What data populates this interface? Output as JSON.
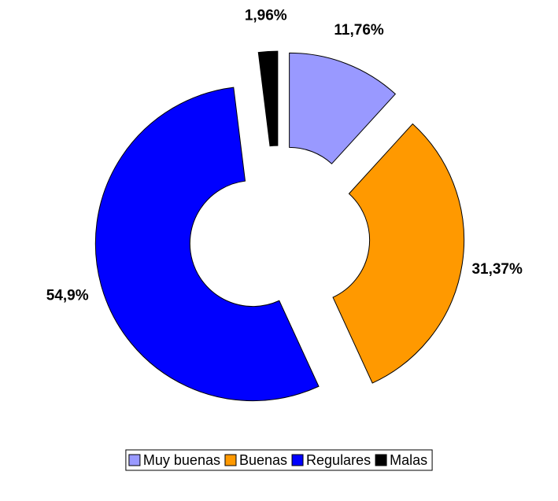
{
  "chart_data": {
    "type": "donut",
    "categories": [
      "Muy buenas",
      "Buenas",
      "Regulares",
      "Malas"
    ],
    "values": [
      11.76,
      31.37,
      54.9,
      1.96
    ],
    "value_labels": [
      "11,76%",
      "31,37%",
      "54,9%",
      "1,96%"
    ],
    "colors": [
      "#9999ff",
      "#ff9900",
      "#0000ff",
      "#000000"
    ],
    "legend": "bottom"
  }
}
